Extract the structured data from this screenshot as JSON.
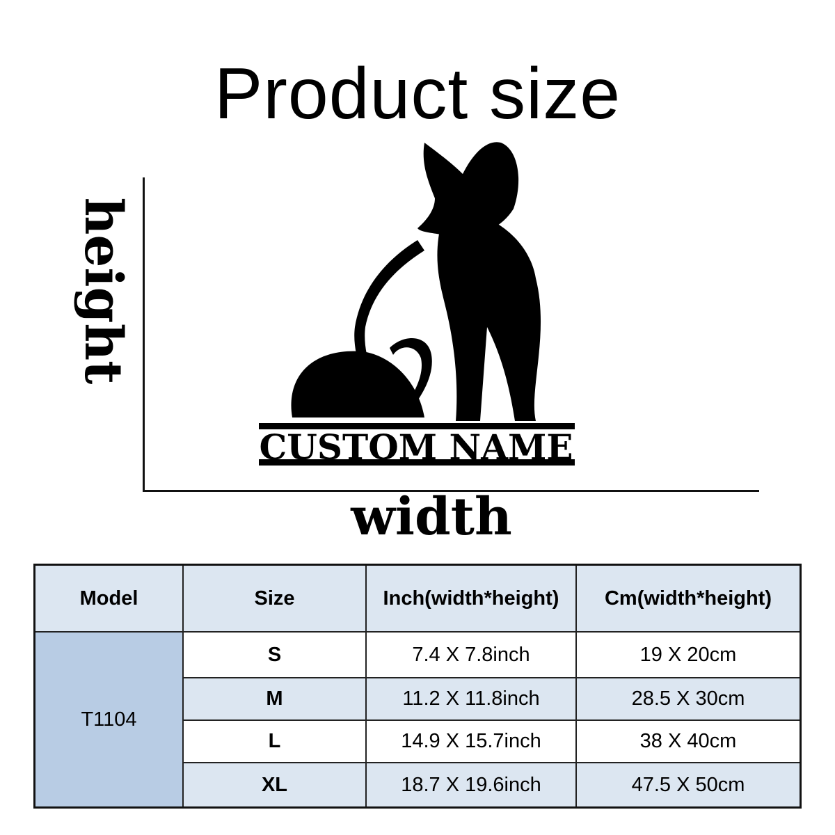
{
  "title": "Product size",
  "labels": {
    "height": "height",
    "width": "width"
  },
  "plaque_text": "CUSTOM NAME",
  "table": {
    "headers": [
      "Model",
      "Size",
      "Inch(width*height)",
      "Cm(width*height)"
    ],
    "model": "T1104",
    "rows": [
      {
        "size": "S",
        "inch": "7.4 X 7.8inch",
        "cm": "19 X 20cm"
      },
      {
        "size": "M",
        "inch": "11.2 X 11.8inch",
        "cm": "28.5 X 30cm"
      },
      {
        "size": "L",
        "inch": "14.9 X 15.7inch",
        "cm": "38 X 40cm"
      },
      {
        "size": "XL",
        "inch": "18.7 X 19.6inch",
        "cm": "47.5 X 50cm"
      }
    ]
  },
  "colors": {
    "header_bg": "#dce6f1",
    "model_bg": "#b8cce4",
    "alt_row_bg": "#dce6f1"
  }
}
